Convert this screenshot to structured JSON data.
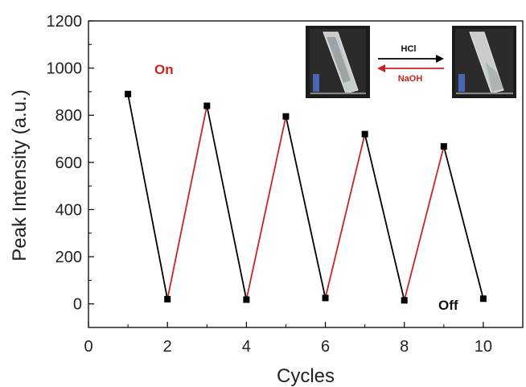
{
  "chart_data": {
    "type": "line",
    "xlabel": "Cycles",
    "ylabel": "Peak Intensity (a.u.)",
    "xlim": [
      0,
      11
    ],
    "ylim": [
      -100,
      1200
    ],
    "xticks": [
      0,
      2,
      4,
      6,
      8,
      10
    ],
    "yticks": [
      0,
      200,
      400,
      600,
      800,
      1000,
      1200
    ],
    "x": [
      1,
      2,
      3,
      4,
      5,
      6,
      7,
      8,
      9,
      10
    ],
    "y": [
      890,
      20,
      840,
      18,
      795,
      25,
      720,
      15,
      668,
      22
    ],
    "segment_colors": [
      "#000000",
      "#cc2222",
      "#000000",
      "#cc2222",
      "#000000",
      "#cc2222",
      "#000000",
      "#cc2222",
      "#000000"
    ],
    "grid": false,
    "annotations": {
      "on": "On",
      "off": "Off"
    },
    "inset": {
      "forward_label": "HCl",
      "backward_label": "NaOH"
    },
    "colors": {
      "on_line": "#cc2222",
      "off_line": "#000000",
      "on_text": "#cc2222",
      "off_text": "#000000"
    }
  }
}
